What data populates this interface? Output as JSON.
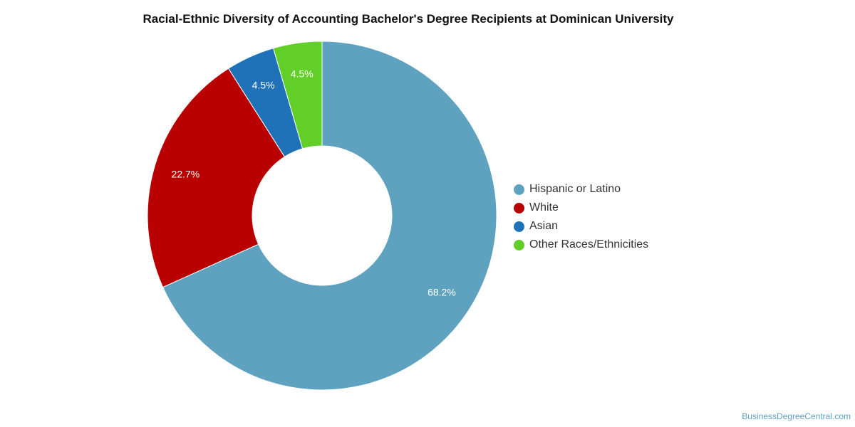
{
  "title": "Racial-Ethnic Diversity of Accounting Bachelor's Degree Recipients at Dominican University",
  "source": "BusinessDegreeCentral.com",
  "chart_data": {
    "type": "pie",
    "variant": "donut",
    "categories": [
      "Hispanic or Latino",
      "White",
      "Asian",
      "Other Races/Ethnicities"
    ],
    "values": [
      68.2,
      22.7,
      4.5,
      4.5
    ],
    "labels": [
      "68.2%",
      "22.7%",
      "4.5%",
      "4.5%"
    ],
    "colors": [
      "#5ea2bf",
      "#b90000",
      "#1f72b8",
      "#62cf29"
    ],
    "start": "12 o'clock, clockwise",
    "legend_placement": "right"
  }
}
